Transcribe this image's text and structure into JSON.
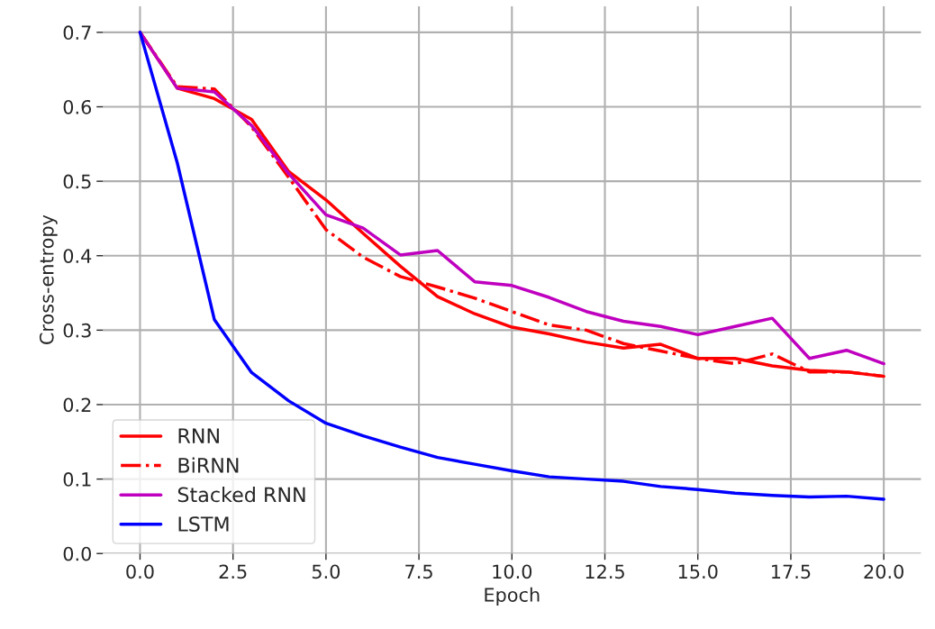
{
  "chart_data": {
    "type": "line",
    "xlabel": "Epoch",
    "ylabel": "Cross-entropy",
    "x": [
      0,
      1,
      2,
      3,
      4,
      5,
      6,
      7,
      8,
      9,
      10,
      11,
      12,
      13,
      14,
      15,
      16,
      17,
      18,
      19,
      20
    ],
    "xlim": [
      -1,
      21
    ],
    "xticks": [
      {
        "value": 0,
        "label": "0.0"
      },
      {
        "value": 2.5,
        "label": "2.5"
      },
      {
        "value": 5,
        "label": "5.0"
      },
      {
        "value": 7.5,
        "label": "7.5"
      },
      {
        "value": 10,
        "label": "10.0"
      },
      {
        "value": 12.5,
        "label": "12.5"
      },
      {
        "value": 15,
        "label": "15.0"
      },
      {
        "value": 17.5,
        "label": "17.5"
      },
      {
        "value": 20,
        "label": "20.0"
      }
    ],
    "ylim": [
      0,
      0.735
    ],
    "yticks": [
      {
        "value": 0,
        "label": "0.0"
      },
      0.1,
      0.2,
      0.3,
      0.4,
      0.5,
      0.6,
      0.7
    ],
    "grid": true,
    "legend": "bottom left",
    "series": [
      {
        "name": "RNN",
        "color": "#ff0000",
        "line_style": "solid",
        "values": [
          0.7,
          0.625,
          0.611,
          0.583,
          0.513,
          0.475,
          0.43,
          0.386,
          0.345,
          0.322,
          0.304,
          0.295,
          0.284,
          0.276,
          0.281,
          0.262,
          0.262,
          0.252,
          0.246,
          0.244,
          0.238
        ]
      },
      {
        "name": "BiRNN",
        "color": "#ff0000",
        "line_style": "dashdot",
        "values": [
          0.7,
          0.627,
          0.624,
          0.573,
          0.505,
          0.435,
          0.398,
          0.372,
          0.358,
          0.343,
          0.325,
          0.307,
          0.3,
          0.282,
          0.272,
          0.262,
          0.255,
          0.268,
          0.244,
          0.244,
          0.238
        ]
      },
      {
        "name": "Stacked RNN",
        "color": "#bf00bf",
        "line_style": "solid",
        "values": [
          0.7,
          0.625,
          0.62,
          0.575,
          0.51,
          0.455,
          0.437,
          0.401,
          0.407,
          0.365,
          0.36,
          0.344,
          0.325,
          0.312,
          0.305,
          0.294,
          0.305,
          0.316,
          0.262,
          0.273,
          0.255
        ]
      },
      {
        "name": "LSTM",
        "color": "#0000ff",
        "line_style": "solid",
        "values": [
          0.7,
          0.525,
          0.314,
          0.243,
          0.205,
          0.175,
          0.158,
          0.143,
          0.129,
          0.12,
          0.111,
          0.103,
          0.1,
          0.097,
          0.09,
          0.086,
          0.081,
          0.078,
          0.076,
          0.077,
          0.073
        ]
      }
    ]
  }
}
